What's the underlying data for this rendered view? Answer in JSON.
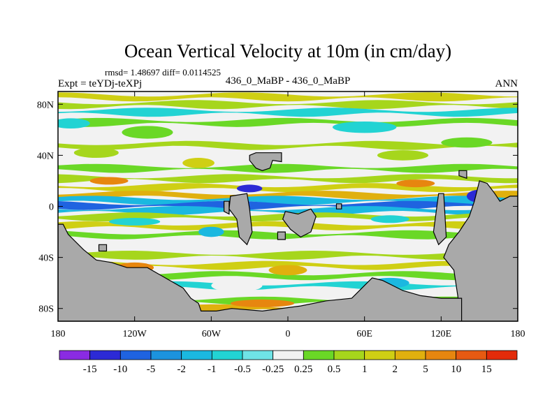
{
  "chart_data": {
    "type": "heatmap",
    "title": "Ocean Vertical Velocity at 10m (in cm/day)",
    "subtitle_stats": "rmsd= 1.48697 diff= 0.0114525",
    "left_label": "Expt = teYDj-teXPj",
    "center_label": "436_0_MaBP - 436_0_MaBP",
    "right_label": "ANN",
    "x_ticks": [
      "180",
      "120W",
      "60W",
      "0",
      "60E",
      "120E",
      "180"
    ],
    "x_tick_values": [
      -180,
      -120,
      -60,
      0,
      60,
      120,
      180
    ],
    "y_ticks": [
      "80N",
      "40N",
      "0",
      "40S",
      "80S"
    ],
    "y_tick_values": [
      80,
      40,
      0,
      -40,
      -80
    ],
    "xlim": [
      -180,
      180
    ],
    "ylim": [
      -90,
      90
    ],
    "colorbar": {
      "labels": [
        "-15",
        "-10",
        "-5",
        "-2",
        "-1",
        "-0.5",
        "-0.25",
        "0.25",
        "0.5",
        "1",
        "2",
        "5",
        "10",
        "15"
      ],
      "colors": [
        "#8a2be2",
        "#2c2ad6",
        "#1f63e0",
        "#1c93de",
        "#1bb8e0",
        "#22d3d3",
        "#6fe3e6",
        "#f2f2f2",
        "#6ad826",
        "#a6d61c",
        "#cfcf14",
        "#e0b00e",
        "#e7860f",
        "#e75a12",
        "#e32b0a"
      ]
    },
    "land_color": "#a9a9a9",
    "bands": [
      {
        "lat": 86,
        "color": "#cfcf14"
      },
      {
        "lat": 80,
        "color": "#a6d61c"
      },
      {
        "lat": 74,
        "color": "#22d3d3"
      },
      {
        "lat": 66,
        "color": "#6ad826"
      },
      {
        "lat": 57,
        "color": "#f2f2f2"
      },
      {
        "lat": 48,
        "color": "#a6d61c"
      },
      {
        "lat": 38,
        "color": "#f2f2f2"
      },
      {
        "lat": 30,
        "color": "#6ad826"
      },
      {
        "lat": 22,
        "color": "#a6d61c"
      },
      {
        "lat": 15,
        "color": "#cfcf14"
      },
      {
        "lat": 9,
        "color": "#e0b00e"
      },
      {
        "lat": 5,
        "color": "#1bb8e0"
      },
      {
        "lat": 1,
        "color": "#1f63e0"
      },
      {
        "lat": -3,
        "color": "#1bb8e0"
      },
      {
        "lat": -8,
        "color": "#a6d61c"
      },
      {
        "lat": -15,
        "color": "#cfcf14"
      },
      {
        "lat": -22,
        "color": "#6ad826"
      },
      {
        "lat": -30,
        "color": "#f2f2f2"
      },
      {
        "lat": -38,
        "color": "#a6d61c"
      },
      {
        "lat": -46,
        "color": "#cfcf14"
      },
      {
        "lat": -54,
        "color": "#6ad826"
      },
      {
        "lat": -62,
        "color": "#22d3d3"
      },
      {
        "lat": -68,
        "color": "#f2f2f2"
      },
      {
        "lat": -74,
        "color": "#6ad826"
      },
      {
        "lat": -80,
        "color": "#e0b00e"
      }
    ],
    "patches": [
      {
        "lon": -170,
        "lat": 65,
        "w": 30,
        "h": 8,
        "color": "#22d3d3"
      },
      {
        "lon": -110,
        "lat": 58,
        "w": 40,
        "h": 10,
        "color": "#6ad826"
      },
      {
        "lon": 60,
        "lat": 62,
        "w": 50,
        "h": 9,
        "color": "#22d3d3"
      },
      {
        "lon": 140,
        "lat": 50,
        "w": 40,
        "h": 8,
        "color": "#6ad826"
      },
      {
        "lon": -150,
        "lat": 42,
        "w": 35,
        "h": 8,
        "color": "#a6d61c"
      },
      {
        "lon": 90,
        "lat": 40,
        "w": 40,
        "h": 8,
        "color": "#a6d61c"
      },
      {
        "lon": -70,
        "lat": 34,
        "w": 25,
        "h": 8,
        "color": "#cfcf14"
      },
      {
        "lon": -140,
        "lat": 20,
        "w": 30,
        "h": 6,
        "color": "#e7860f"
      },
      {
        "lon": 100,
        "lat": 18,
        "w": 30,
        "h": 6,
        "color": "#e7860f"
      },
      {
        "lon": -30,
        "lat": 14,
        "w": 20,
        "h": 6,
        "color": "#2c2ad6"
      },
      {
        "lon": 150,
        "lat": 8,
        "w": 20,
        "h": 10,
        "color": "#2c2ad6"
      },
      {
        "lon": -120,
        "lat": -12,
        "w": 40,
        "h": 6,
        "color": "#22d3d3"
      },
      {
        "lon": 80,
        "lat": -10,
        "w": 30,
        "h": 6,
        "color": "#22d3d3"
      },
      {
        "lon": -60,
        "lat": -20,
        "w": 20,
        "h": 8,
        "color": "#1bb8e0"
      },
      {
        "lon": 30,
        "lat": -30,
        "w": 25,
        "h": 8,
        "color": "#f2f2f2"
      },
      {
        "lon": -120,
        "lat": -48,
        "w": 30,
        "h": 8,
        "color": "#e7860f"
      },
      {
        "lon": 0,
        "lat": -50,
        "w": 30,
        "h": 8,
        "color": "#e0b00e"
      },
      {
        "lon": -40,
        "lat": -62,
        "w": 40,
        "h": 10,
        "color": "#f2f2f2"
      },
      {
        "lon": 80,
        "lat": -60,
        "w": 30,
        "h": 8,
        "color": "#1bb8e0"
      },
      {
        "lon": -20,
        "lat": -76,
        "w": 50,
        "h": 6,
        "color": "#e7860f"
      }
    ],
    "land": [
      {
        "name": "north-america-land",
        "points": [
          [
            -25,
            42
          ],
          [
            -5,
            42
          ],
          [
            -5,
            35
          ],
          [
            -12,
            36
          ],
          [
            -14,
            30
          ],
          [
            -20,
            28
          ],
          [
            -25,
            30
          ],
          [
            -30,
            36
          ],
          [
            -30,
            40
          ]
        ]
      },
      {
        "name": "south-america-land",
        "points": [
          [
            -45,
            8
          ],
          [
            -32,
            10
          ],
          [
            -30,
            -2
          ],
          [
            -28,
            -20
          ],
          [
            -32,
            -30
          ],
          [
            -38,
            -24
          ],
          [
            -40,
            -10
          ],
          [
            -46,
            -2
          ]
        ]
      },
      {
        "name": "central-island-land",
        "points": [
          [
            -50,
            4
          ],
          [
            -46,
            4
          ],
          [
            -46,
            -6
          ],
          [
            -50,
            -4
          ]
        ]
      },
      {
        "name": "africa-land",
        "points": [
          [
            -2,
            -4
          ],
          [
            8,
            -6
          ],
          [
            18,
            -2
          ],
          [
            22,
            -8
          ],
          [
            18,
            -20
          ],
          [
            10,
            -24
          ],
          [
            2,
            -18
          ],
          [
            -4,
            -10
          ]
        ]
      },
      {
        "name": "small-island-land",
        "points": [
          [
            -8,
            -20
          ],
          [
            -2,
            -20
          ],
          [
            -2,
            -26
          ],
          [
            -8,
            -26
          ]
        ]
      },
      {
        "name": "equatorial-islet-land",
        "points": [
          [
            38,
            2
          ],
          [
            42,
            2
          ],
          [
            42,
            -2
          ],
          [
            38,
            -2
          ]
        ]
      },
      {
        "name": "asia-land",
        "points": [
          [
            134,
            28
          ],
          [
            140,
            28
          ],
          [
            140,
            22
          ],
          [
            134,
            24
          ]
        ]
      },
      {
        "name": "india-strip-land",
        "points": [
          [
            118,
            10
          ],
          [
            122,
            10
          ],
          [
            124,
            -24
          ],
          [
            118,
            -30
          ],
          [
            114,
            -20
          ]
        ]
      },
      {
        "name": "australia-land",
        "points": [
          [
            150,
            20
          ],
          [
            156,
            18
          ],
          [
            162,
            10
          ],
          [
            166,
            4
          ],
          [
            174,
            8
          ],
          [
            180,
            8
          ],
          [
            180,
            -90
          ],
          [
            136,
            -90
          ],
          [
            130,
            -50
          ],
          [
            122,
            -40
          ],
          [
            126,
            -30
          ],
          [
            134,
            -20
          ],
          [
            142,
            -8
          ],
          [
            146,
            4
          ]
        ]
      },
      {
        "name": "antarctica-land",
        "points": [
          [
            -180,
            -14
          ],
          [
            -176,
            -14
          ],
          [
            -172,
            -22
          ],
          [
            -160,
            -34
          ],
          [
            -150,
            -42
          ],
          [
            -138,
            -44
          ],
          [
            -126,
            -48
          ],
          [
            -110,
            -48
          ],
          [
            -96,
            -56
          ],
          [
            -82,
            -64
          ],
          [
            -76,
            -72
          ],
          [
            -70,
            -76
          ],
          [
            -68,
            -82
          ],
          [
            -56,
            -82
          ],
          [
            -44,
            -80
          ],
          [
            -20,
            -82
          ],
          [
            10,
            -78
          ],
          [
            30,
            -74
          ],
          [
            50,
            -72
          ],
          [
            66,
            -56
          ],
          [
            74,
            -58
          ],
          [
            90,
            -66
          ],
          [
            104,
            -70
          ],
          [
            120,
            -72
          ],
          [
            136,
            -72
          ],
          [
            136,
            -90
          ],
          [
            -180,
            -90
          ]
        ]
      },
      {
        "name": "small-atoll-land",
        "points": [
          [
            -148,
            -30
          ],
          [
            -142,
            -30
          ],
          [
            -142,
            -35
          ],
          [
            -148,
            -35
          ]
        ]
      }
    ]
  }
}
